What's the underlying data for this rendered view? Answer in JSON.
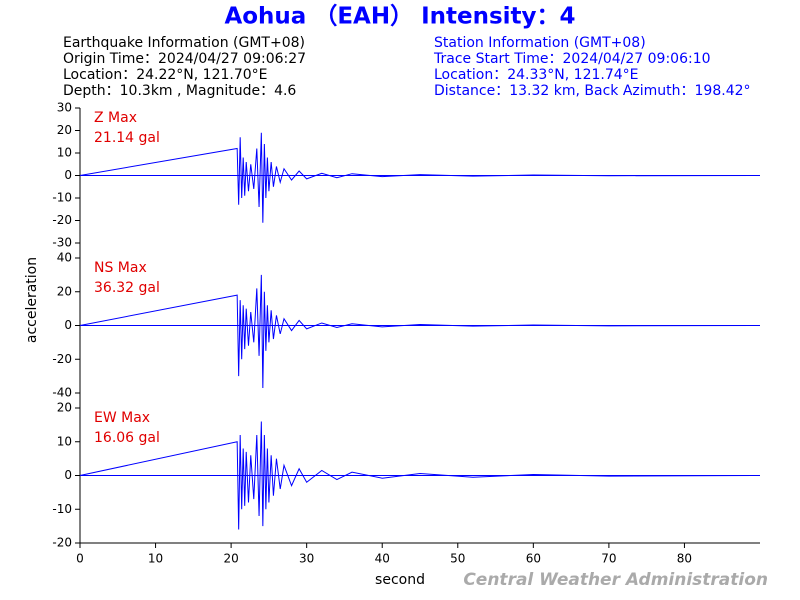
{
  "header": {
    "title": "Aohua （EAH） Intensity：4",
    "eq_info": [
      "Earthquake Information  (GMT+08)",
      "Origin Time：2024/04/27 09:06:27",
      "Location：24.22°N, 121.70°E",
      "Depth：10.3km , Magnitude：4.6"
    ],
    "station_info": [
      "Station Information  (GMT+08)",
      "Trace Start Time：2024/04/27 09:06:10",
      "Location：24.33°N, 121.74°E",
      "Distance：13.32 km, Back Azimuth：198.42°"
    ],
    "y_label": "acceleration",
    "credit": "Central Weather Administration"
  },
  "chart_data": [
    {
      "type": "line",
      "annotation": [
        "Z Max",
        "21.14 gal"
      ],
      "color": "#0000ff",
      "x": [
        0,
        20.8,
        21.0,
        21.2,
        21.4,
        21.6,
        21.8,
        22.0,
        22.3,
        22.6,
        23.0,
        23.4,
        23.7,
        24.0,
        24.2,
        24.4,
        24.6,
        24.8,
        25.0,
        25.3,
        25.6,
        26,
        26.5,
        27,
        28,
        29,
        30,
        32,
        34,
        36,
        40,
        45,
        52,
        60,
        70,
        89
      ],
      "values": [
        0,
        12,
        -13,
        17,
        -10,
        8,
        -9,
        6,
        -7,
        5,
        -6,
        12,
        -14,
        19,
        -21,
        14,
        -10,
        8,
        -7,
        6,
        -5,
        4,
        -3,
        3,
        -2,
        2,
        -1.5,
        1,
        -1,
        0.8,
        -0.5,
        0.4,
        -0.3,
        0.2,
        -0.1,
        0
      ],
      "xlim": [
        0,
        90
      ],
      "ylim": [
        -30,
        30
      ],
      "yticks": [
        30,
        20,
        10,
        0,
        -10,
        -20,
        -30
      ]
    },
    {
      "type": "line",
      "annotation": [
        "NS Max",
        "36.32 gal"
      ],
      "color": "#0000ff",
      "x": [
        0,
        20.8,
        21.0,
        21.2,
        21.4,
        21.6,
        21.8,
        22.0,
        22.3,
        22.6,
        23.0,
        23.4,
        23.7,
        24.0,
        24.2,
        24.4,
        24.6,
        24.8,
        25.0,
        25.3,
        25.6,
        26,
        26.5,
        27,
        28,
        29,
        30,
        32,
        34,
        36,
        40,
        45,
        52,
        60,
        70,
        89
      ],
      "values": [
        0,
        18,
        -30,
        15,
        -20,
        12,
        -14,
        10,
        -12,
        8,
        -10,
        22,
        -18,
        30,
        -37,
        20,
        -15,
        12,
        -10,
        9,
        -8,
        6,
        -5,
        4,
        -3,
        3,
        -2,
        1.5,
        -1.2,
        1,
        -0.8,
        0.6,
        -0.4,
        0.3,
        -0.2,
        0
      ],
      "xlim": [
        0,
        90
      ],
      "ylim": [
        -40,
        40
      ],
      "yticks": [
        40,
        20,
        0,
        -20,
        -40
      ]
    },
    {
      "type": "line",
      "annotation": [
        "EW Max",
        "16.06 gal"
      ],
      "color": "#0000ff",
      "x": [
        0,
        20.8,
        21.0,
        21.2,
        21.4,
        21.6,
        21.8,
        22.0,
        22.3,
        22.6,
        23.0,
        23.4,
        23.7,
        24.0,
        24.2,
        24.4,
        24.6,
        24.8,
        25.0,
        25.3,
        25.6,
        26,
        26.5,
        27,
        28,
        29,
        30,
        32,
        34,
        36,
        40,
        45,
        52,
        60,
        70,
        89
      ],
      "values": [
        0,
        10,
        -16,
        12,
        -10,
        8,
        -9,
        7,
        -8,
        6,
        -7,
        12,
        -12,
        16,
        -15,
        12,
        -10,
        8,
        -8,
        6,
        -6,
        5,
        -4,
        3,
        -3,
        2,
        -2,
        1.5,
        -1.2,
        1,
        -0.8,
        0.6,
        -0.5,
        0.3,
        -0.2,
        0
      ],
      "xlim": [
        0,
        90
      ],
      "ylim": [
        -20,
        20
      ],
      "yticks": [
        20,
        10,
        0,
        -10,
        -20
      ],
      "xticks": [
        0,
        10,
        20,
        30,
        40,
        50,
        60,
        70,
        80
      ],
      "x_label": "second"
    }
  ]
}
